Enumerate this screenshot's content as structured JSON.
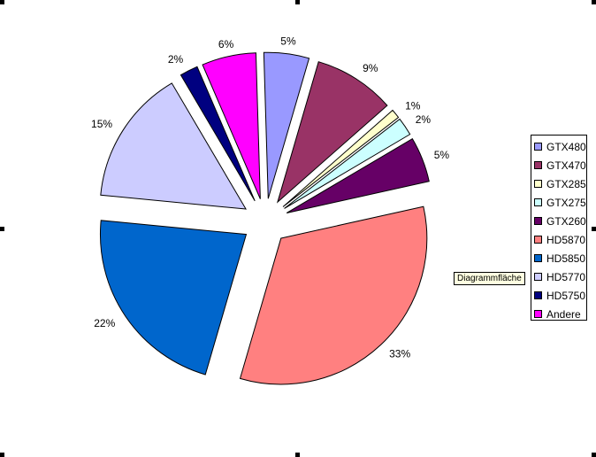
{
  "chart_data": {
    "type": "pie",
    "categories": [
      "GTX480",
      "GTX470",
      "GTX285",
      "GTX275",
      "GTX260",
      "HD5870",
      "HD5850",
      "HD5770",
      "HD5750",
      "Andere"
    ],
    "values": [
      5,
      9,
      1,
      2,
      5,
      33,
      22,
      15,
      2,
      6
    ],
    "value_labels": [
      "5%",
      "9%",
      "1%",
      "2%",
      "5%",
      "33%",
      "22%",
      "15%",
      "2%",
      "6%"
    ],
    "colors": [
      "#9999FF",
      "#993366",
      "#FFFFCC",
      "#CCFFFF",
      "#660066",
      "#FF8080",
      "#0066CC",
      "#CCCCFF",
      "#000080",
      "#FF00FF"
    ],
    "legend_position": "right",
    "exploded": true
  },
  "tooltip": {
    "text": "Diagrammfläche"
  }
}
